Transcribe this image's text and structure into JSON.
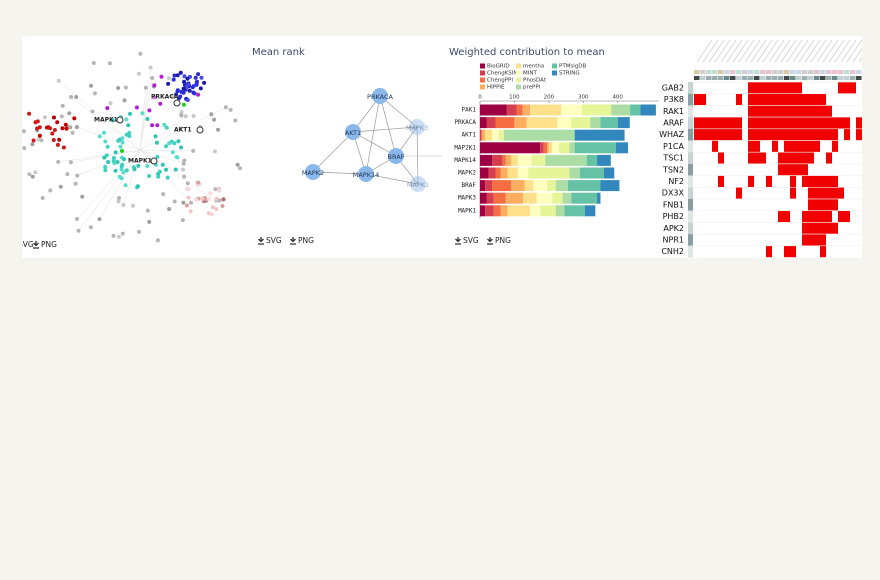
{
  "network_panel": {
    "labels": [
      "MAPK1",
      "PRKACA",
      "AKT1",
      "MAPK1"
    ],
    "buttons": [
      "SVG",
      "PNG"
    ]
  },
  "mean_rank": {
    "title": "Mean rank",
    "nodes": [
      "PRKACA",
      "AKT1",
      "MAPK3",
      "BRAF",
      "MAPK2",
      "MAPK14",
      "MAPK1"
    ],
    "buttons": [
      "SVG",
      "PNG"
    ]
  },
  "chart_data": {
    "type": "stacked-barh",
    "title": "Weighted contribution to mean",
    "categories": [
      "PAK1",
      "PRKACA",
      "AKT1",
      "MAP2K1",
      "MAPK14",
      "MAPK2",
      "BRAF",
      "MAPK3",
      "MAPK1"
    ],
    "xlim": [
      0,
      520
    ],
    "xticks": [
      0,
      100,
      200,
      300,
      400
    ],
    "series": [
      {
        "name": "BioGRID",
        "color": "#9e0142",
        "values": [
          78,
          20,
          0,
          175,
          35,
          25,
          15,
          20,
          15
        ]
      },
      {
        "name": "ChengKSIN",
        "color": "#d53e4f",
        "values": [
          28,
          25,
          5,
          10,
          30,
          20,
          20,
          20,
          25
        ]
      },
      {
        "name": "ChengPPI",
        "color": "#f46d43",
        "values": [
          18,
          55,
          0,
          10,
          10,
          15,
          55,
          35,
          20
        ]
      },
      {
        "name": "HIPPIE",
        "color": "#fdae61",
        "values": [
          22,
          35,
          10,
          5,
          15,
          20,
          40,
          50,
          20
        ]
      },
      {
        "name": "mentha",
        "color": "#fee08b",
        "values": [
          90,
          90,
          20,
          10,
          20,
          30,
          25,
          40,
          65
        ]
      },
      {
        "name": "MINT",
        "color": "#ffffbf",
        "values": [
          60,
          40,
          20,
          20,
          40,
          30,
          40,
          45,
          30
        ]
      },
      {
        "name": "PhosDAt",
        "color": "#e6f598",
        "values": [
          85,
          55,
          15,
          30,
          40,
          120,
          25,
          30,
          45
        ]
      },
      {
        "name": "prePPI",
        "color": "#abdda4",
        "values": [
          55,
          30,
          205,
          15,
          120,
          30,
          35,
          25,
          25
        ]
      },
      {
        "name": "PTMsigDB",
        "color": "#66c2a5",
        "values": [
          30,
          50,
          0,
          120,
          30,
          70,
          95,
          75,
          60
        ]
      },
      {
        "name": "STRING",
        "color": "#3288bd",
        "values": [
          45,
          35,
          145,
          35,
          40,
          30,
          55,
          10,
          30
        ]
      }
    ],
    "buttons": [
      "SVG",
      "PNG"
    ]
  },
  "heatmap": {
    "rows": [
      "GAB2",
      "P3K8",
      "RAK1",
      "ARAF",
      "WHAZ",
      "P1CA",
      "TSC1",
      "TSN2",
      "NF2",
      "DX3X",
      "FNB1",
      "PHB2",
      "APK2",
      "NPR1",
      "CNH2"
    ],
    "color": "#f00000",
    "matrix": [
      [
        0,
        0,
        0,
        0,
        0,
        0,
        0,
        0,
        0,
        1,
        1,
        1,
        1,
        1,
        1,
        1,
        1,
        1,
        0,
        0,
        0,
        0,
        0,
        0,
        1,
        1,
        1,
        0
      ],
      [
        1,
        1,
        0,
        0,
        0,
        0,
        0,
        1,
        0,
        1,
        1,
        1,
        1,
        1,
        1,
        1,
        1,
        1,
        1,
        1,
        1,
        1,
        0,
        0,
        0,
        0,
        0,
        0
      ],
      [
        0,
        0,
        0,
        0,
        0,
        0,
        0,
        0,
        0,
        1,
        1,
        1,
        1,
        1,
        1,
        1,
        1,
        1,
        1,
        1,
        1,
        1,
        1,
        0,
        0,
        0,
        0,
        0
      ],
      [
        1,
        1,
        1,
        1,
        1,
        1,
        1,
        1,
        0,
        1,
        1,
        1,
        1,
        1,
        1,
        1,
        1,
        1,
        1,
        1,
        1,
        1,
        1,
        1,
        1,
        1,
        0,
        1
      ],
      [
        1,
        1,
        1,
        1,
        1,
        1,
        1,
        1,
        0,
        1,
        1,
        1,
        1,
        1,
        1,
        1,
        1,
        1,
        1,
        1,
        1,
        1,
        1,
        1,
        0,
        1,
        0,
        1
      ],
      [
        0,
        0,
        0,
        1,
        0,
        0,
        0,
        0,
        0,
        1,
        1,
        0,
        0,
        1,
        0,
        1,
        1,
        1,
        1,
        1,
        1,
        0,
        0,
        1,
        0,
        0,
        0,
        0
      ],
      [
        0,
        0,
        0,
        0,
        1,
        0,
        0,
        0,
        0,
        1,
        1,
        1,
        0,
        0,
        1,
        1,
        1,
        1,
        1,
        1,
        0,
        0,
        1,
        0,
        0,
        0,
        0,
        0
      ],
      [
        0,
        0,
        0,
        0,
        0,
        0,
        0,
        0,
        0,
        0,
        0,
        0,
        0,
        0,
        1,
        1,
        1,
        1,
        1,
        0,
        0,
        0,
        0,
        0,
        0,
        0,
        0,
        0
      ],
      [
        0,
        0,
        0,
        0,
        1,
        0,
        0,
        0,
        0,
        1,
        0,
        0,
        1,
        0,
        0,
        0,
        1,
        0,
        1,
        1,
        1,
        1,
        1,
        1,
        0,
        0,
        0,
        0
      ],
      [
        0,
        0,
        0,
        0,
        0,
        0,
        0,
        1,
        0,
        0,
        0,
        0,
        0,
        0,
        0,
        0,
        1,
        0,
        0,
        1,
        1,
        1,
        1,
        1,
        1,
        0,
        0,
        0
      ],
      [
        0,
        0,
        0,
        0,
        0,
        0,
        0,
        0,
        0,
        0,
        0,
        0,
        0,
        0,
        0,
        0,
        0,
        0,
        0,
        1,
        1,
        1,
        1,
        1,
        0,
        0,
        0,
        0
      ],
      [
        0,
        0,
        0,
        0,
        0,
        0,
        0,
        0,
        0,
        0,
        0,
        0,
        0,
        0,
        1,
        1,
        0,
        0,
        1,
        1,
        1,
        1,
        1,
        0,
        1,
        1,
        0,
        0
      ],
      [
        0,
        0,
        0,
        0,
        0,
        0,
        0,
        0,
        0,
        0,
        0,
        0,
        0,
        0,
        0,
        0,
        0,
        0,
        1,
        1,
        1,
        1,
        1,
        1,
        0,
        0,
        0,
        0
      ],
      [
        0,
        0,
        0,
        0,
        0,
        0,
        0,
        0,
        0,
        0,
        0,
        0,
        0,
        0,
        0,
        0,
        0,
        0,
        1,
        1,
        1,
        1,
        0,
        0,
        0,
        0,
        0,
        0
      ],
      [
        0,
        0,
        0,
        0,
        0,
        0,
        0,
        0,
        0,
        0,
        0,
        0,
        1,
        0,
        0,
        1,
        1,
        0,
        0,
        0,
        0,
        1,
        0,
        0,
        0,
        0,
        0,
        0
      ]
    ]
  }
}
